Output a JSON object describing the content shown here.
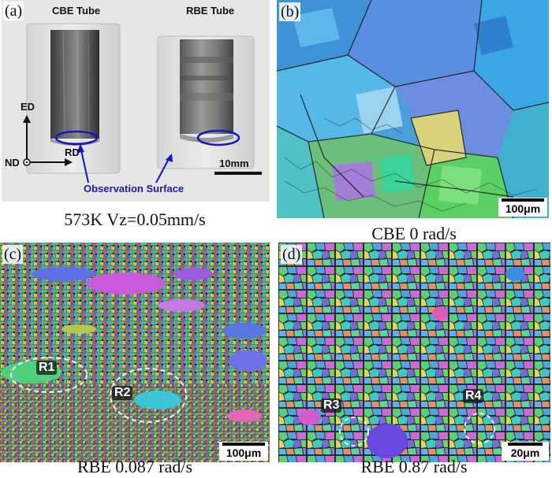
{
  "panels": {
    "a": {
      "label": "(a)",
      "tube_left": "CBE Tube",
      "tube_right": "RBE Tube",
      "axis_ed": "ED",
      "axis_rd": "RD",
      "axis_nd": "ND",
      "scale": "10mm",
      "observation": "Observation Surface",
      "caption": "573K  Vz=0.05mm/s"
    },
    "b": {
      "label": "(b)",
      "scale": "100μm",
      "caption": "CBE  0 rad/s"
    },
    "c": {
      "label": "(c)",
      "scale": "100μm",
      "caption": "RBE  0.087 rad/s",
      "regions": [
        "R1",
        "R2"
      ]
    },
    "d": {
      "label": "(d)",
      "scale": "20μm",
      "caption": "RBE  0.87 rad/s",
      "regions": [
        "R3",
        "R4"
      ]
    }
  },
  "colors": {
    "ellipse": "#1515c8",
    "annotation_text": "#1a1ab8",
    "ebsd_blue": "#4aa3dd",
    "ebsd_green": "#57d26a",
    "ebsd_magenta": "#b84fd8"
  }
}
